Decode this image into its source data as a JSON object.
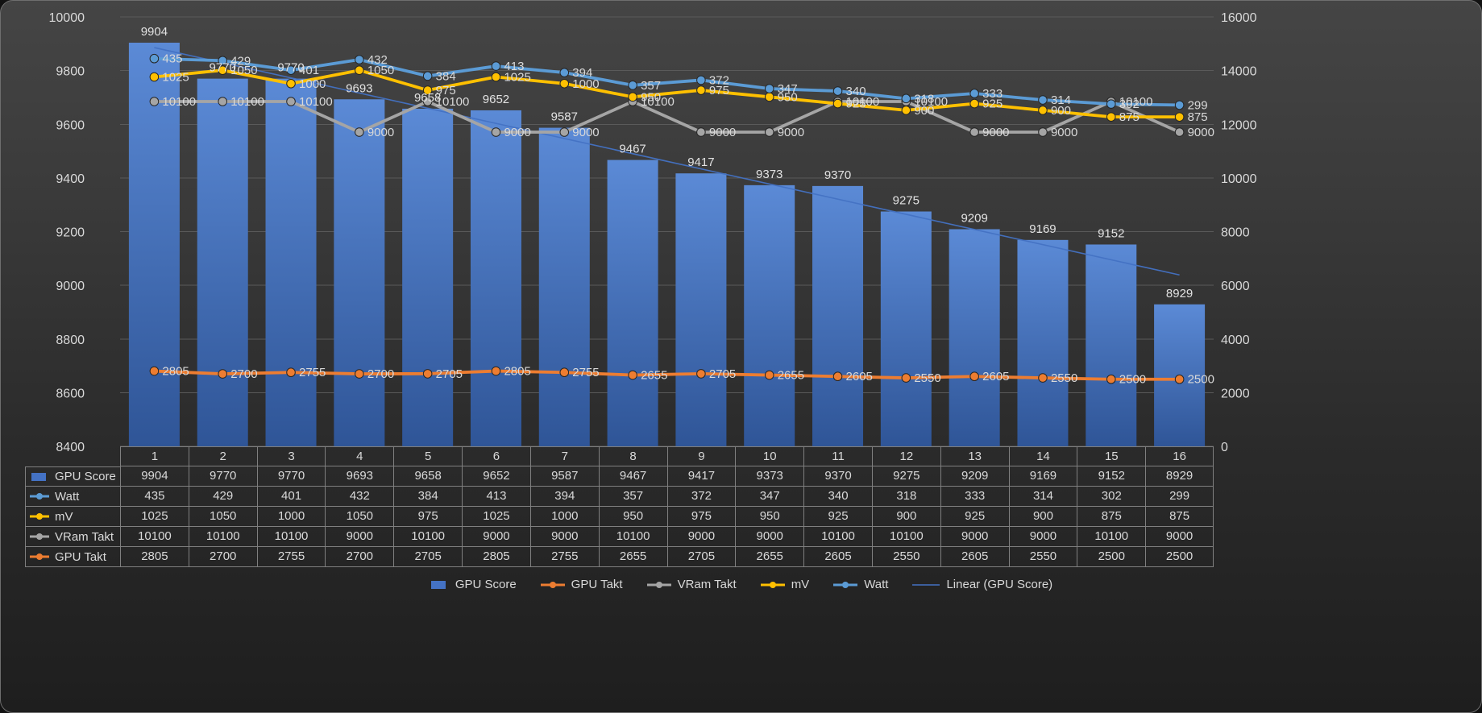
{
  "chart_data": {
    "type": "bar",
    "categories": [
      "1",
      "2",
      "3",
      "4",
      "5",
      "6",
      "7",
      "8",
      "9",
      "10",
      "11",
      "12",
      "13",
      "14",
      "15",
      "16"
    ],
    "series": [
      {
        "name": "GPU Score",
        "type": "bar",
        "axis": "left",
        "color": "#4472C4",
        "color_top": "#5b8ad6",
        "color_bottom": "#2f5597",
        "values": [
          9904,
          9770,
          9770,
          9693,
          9658,
          9652,
          9587,
          9467,
          9417,
          9373,
          9370,
          9275,
          9209,
          9169,
          9152,
          8929
        ]
      },
      {
        "name": "Watt",
        "type": "line",
        "axis": "custom",
        "axis_range": [
          -700,
          557
        ],
        "color": "#5B9BD5",
        "values": [
          435,
          429,
          401,
          432,
          384,
          413,
          394,
          357,
          372,
          347,
          340,
          318,
          333,
          314,
          302,
          299
        ]
      },
      {
        "name": "mV",
        "type": "line",
        "axis": "custom",
        "axis_range": [
          -360,
          1250
        ],
        "color": "#FFC000",
        "values": [
          1025,
          1050,
          1000,
          1050,
          975,
          1025,
          1000,
          950,
          975,
          950,
          925,
          900,
          925,
          900,
          875,
          875
        ]
      },
      {
        "name": "VRam Takt",
        "type": "line",
        "axis": "custom",
        "axis_range": [
          -2290,
          13140
        ],
        "color": "#A5A5A5",
        "values": [
          10100,
          10100,
          10100,
          9000,
          10100,
          9000,
          9000,
          10100,
          9000,
          9000,
          10100,
          10100,
          9000,
          9000,
          10100,
          9000
        ]
      },
      {
        "name": "GPU Takt",
        "type": "line",
        "axis": "right",
        "color": "#ED7D31",
        "values": [
          2805,
          2700,
          2755,
          2700,
          2705,
          2805,
          2755,
          2655,
          2705,
          2655,
          2605,
          2550,
          2605,
          2550,
          2500,
          2500
        ]
      }
    ],
    "trendline": {
      "label": "Linear (GPU Score)",
      "source": "GPU Score",
      "color": "#4472C4"
    },
    "axes": {
      "left": {
        "min": 8400,
        "max": 10000,
        "ticks": [
          "8400",
          "8600",
          "8800",
          "9000",
          "9200",
          "9400",
          "9600",
          "9800",
          "10000"
        ]
      },
      "right": {
        "min": 0,
        "max": 16000,
        "ticks": [
          "0",
          "2000",
          "4000",
          "6000",
          "8000",
          "10000",
          "12000",
          "14000",
          "16000"
        ]
      }
    },
    "grid": true,
    "legend_position": "bottom",
    "legend_order": [
      "GPU Score",
      "GPU Takt",
      "VRam Takt",
      "mV",
      "Watt",
      "Linear (GPU Score)"
    ],
    "table_row_order": [
      "GPU Score",
      "Watt",
      "mV",
      "VRam Takt",
      "GPU Takt"
    ],
    "line_draw_order": [
      "VRam Takt",
      "mV",
      "Watt",
      "GPU Takt"
    ]
  },
  "style": {
    "text_color": "#d9d9d9",
    "bar_label_color": "#e2e2e2",
    "grid_color": "#5a5a5a",
    "table_border_color": "#7f7f7f"
  }
}
